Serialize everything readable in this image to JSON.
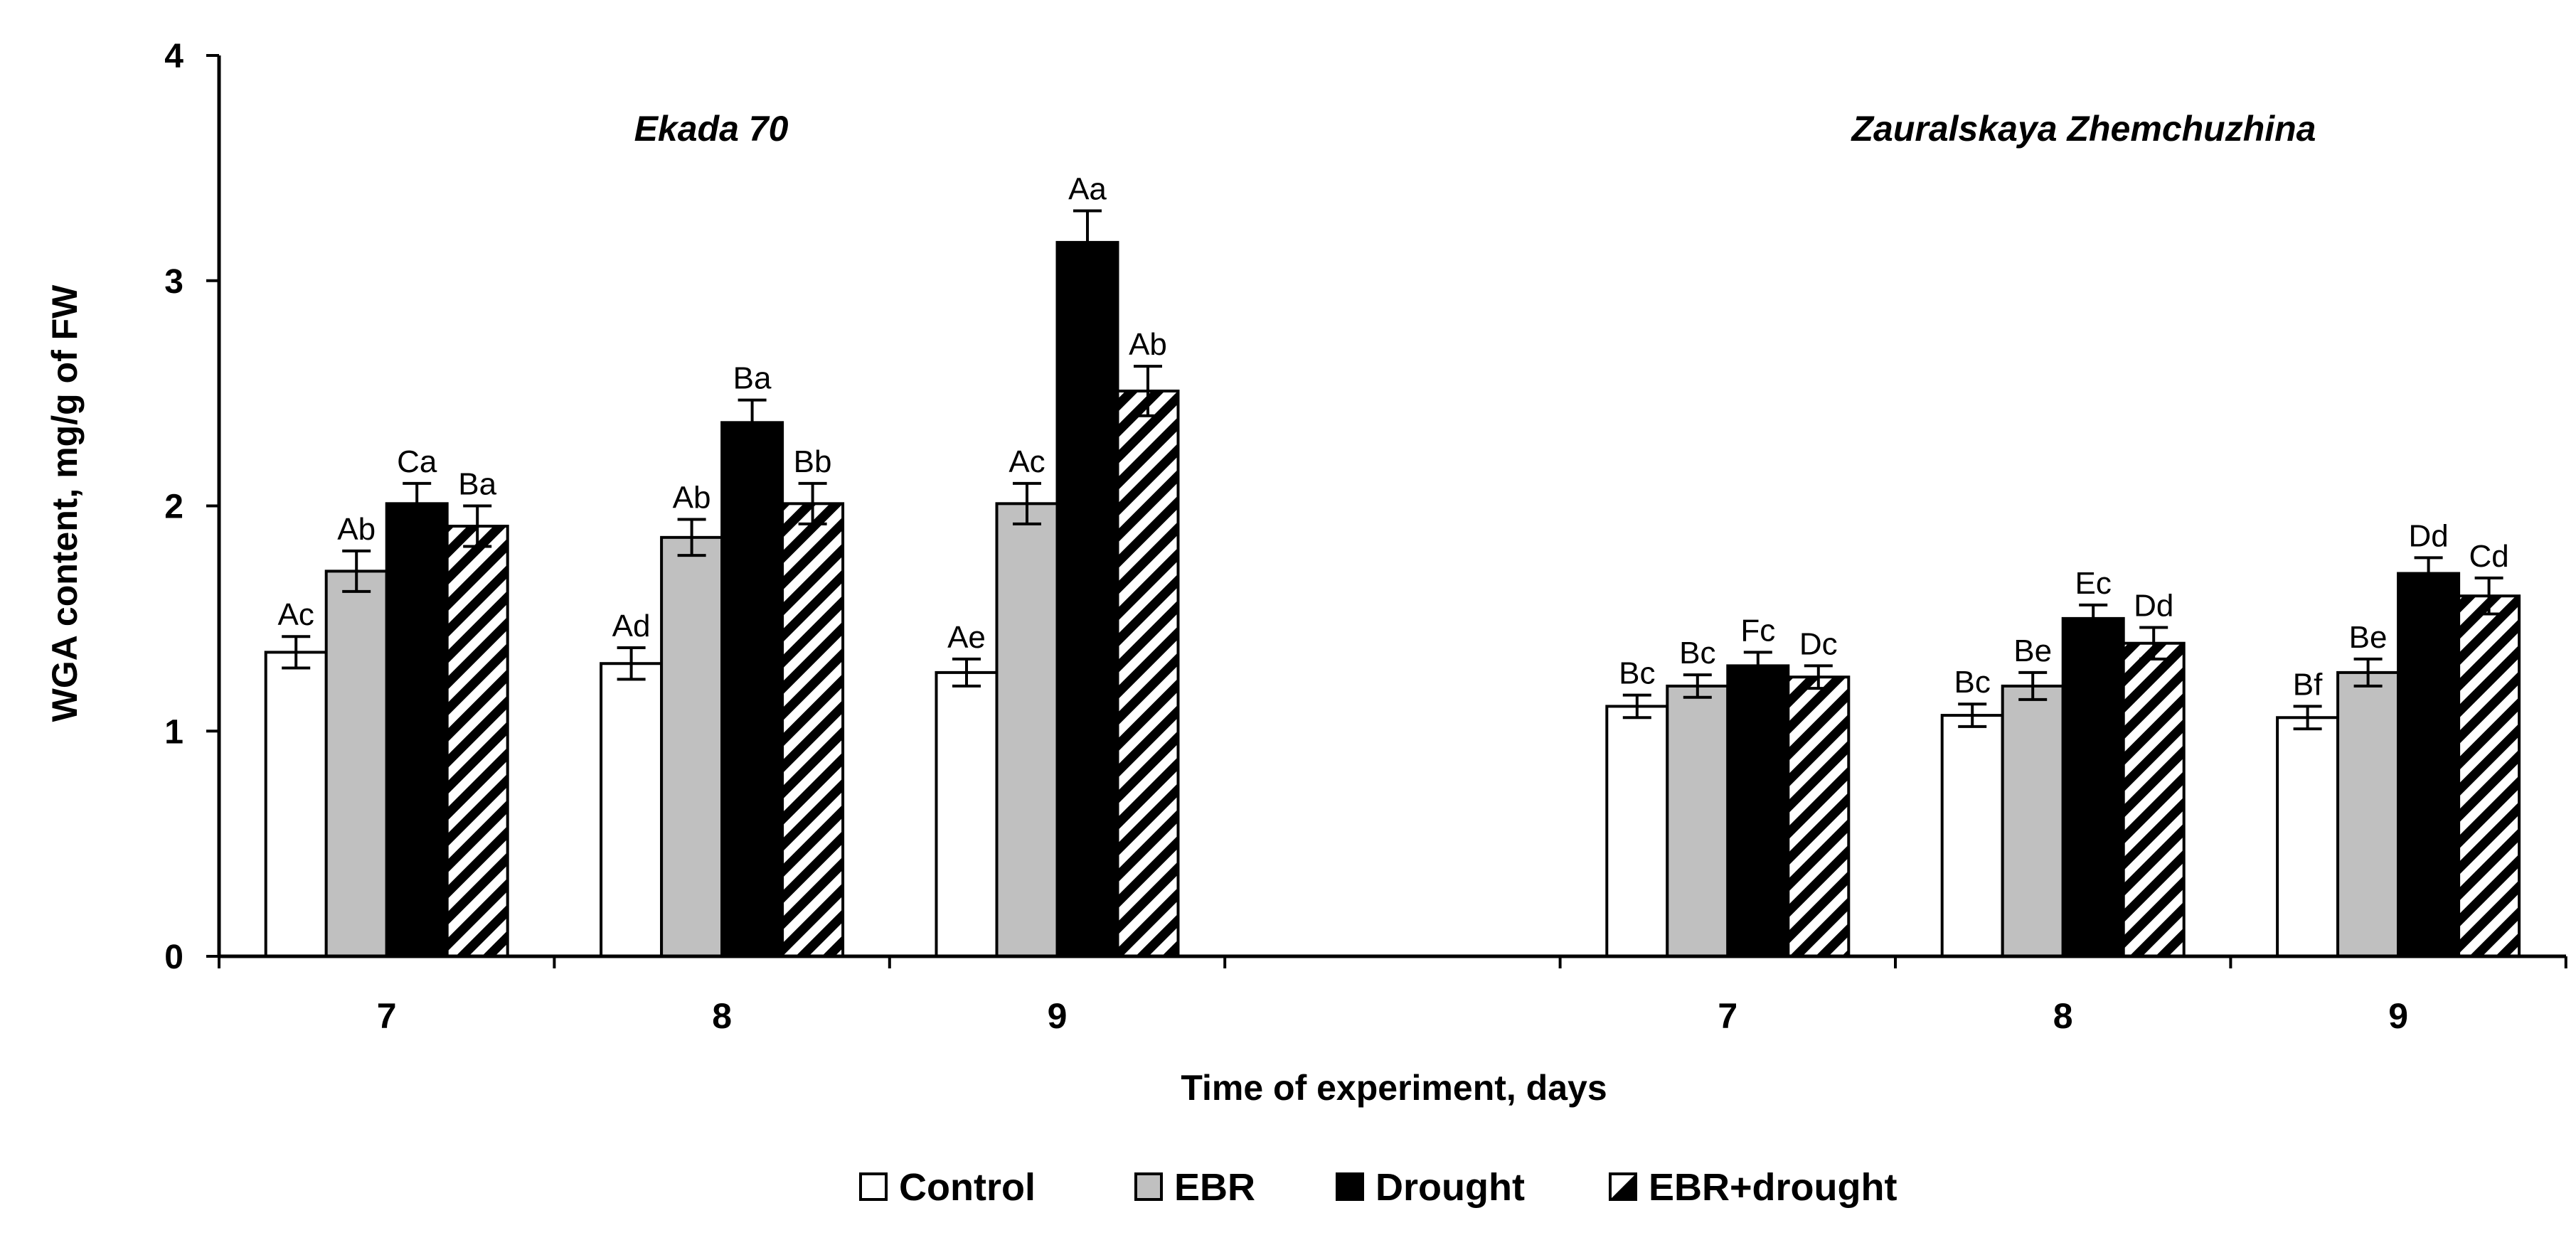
{
  "chart_data": {
    "type": "bar",
    "title": "",
    "xlabel": "Time of experiment, days",
    "ylabel": "WGA content, mg/g of FW",
    "ylim": [
      0,
      4
    ],
    "yticks": [
      "0",
      "1",
      "2",
      "3",
      "4"
    ],
    "grid": false,
    "legend_position": "bottom",
    "groups": [
      {
        "name": "Ekada 70",
        "categories": [
          "7",
          "8",
          "9"
        ],
        "series": [
          {
            "name": "Control",
            "values": [
              1.35,
              1.3,
              1.26
            ],
            "errors": [
              0.07,
              0.07,
              0.06
            ],
            "labels": [
              "Ac",
              "Ad",
              "Ae"
            ]
          },
          {
            "name": "EBR",
            "values": [
              1.71,
              1.86,
              2.01
            ],
            "errors": [
              0.09,
              0.08,
              0.09
            ],
            "labels": [
              "Ab",
              "Ab",
              "Ac"
            ]
          },
          {
            "name": "Drought",
            "values": [
              2.01,
              2.37,
              3.17
            ],
            "errors": [
              0.09,
              0.1,
              0.14
            ],
            "labels": [
              "Ca",
              "Ba",
              "Aa"
            ]
          },
          {
            "name": "EBR+drought",
            "values": [
              1.91,
              2.01,
              2.51
            ],
            "errors": [
              0.09,
              0.09,
              0.11
            ],
            "labels": [
              "Ba",
              "Bb",
              "Ab"
            ]
          }
        ]
      },
      {
        "name": "Zauralskaya Zhemchuzhina",
        "categories": [
          "7",
          "8",
          "9"
        ],
        "series": [
          {
            "name": "Control",
            "values": [
              1.11,
              1.07,
              1.06
            ],
            "errors": [
              0.05,
              0.05,
              0.05
            ],
            "labels": [
              "Bc",
              "Bc",
              "Bf"
            ]
          },
          {
            "name": "EBR",
            "values": [
              1.2,
              1.2,
              1.26
            ],
            "errors": [
              0.05,
              0.06,
              0.06
            ],
            "labels": [
              "Bc",
              "Be",
              "Be"
            ]
          },
          {
            "name": "Drought",
            "values": [
              1.29,
              1.5,
              1.7
            ],
            "errors": [
              0.06,
              0.06,
              0.07
            ],
            "labels": [
              "Fc",
              "Ec",
              "Dd"
            ]
          },
          {
            "name": "EBR+drought",
            "values": [
              1.24,
              1.39,
              1.6
            ],
            "errors": [
              0.05,
              0.07,
              0.08
            ],
            "labels": [
              "Dc",
              "Dd",
              "Cd"
            ]
          }
        ]
      }
    ],
    "legend": [
      "Control",
      "EBR",
      "Drought",
      "EBR+drought"
    ],
    "colors": {
      "Control": "#ffffff",
      "EBR": "#c0c0c0",
      "Drought": "#000000",
      "EBR+drought": "hatch"
    }
  }
}
